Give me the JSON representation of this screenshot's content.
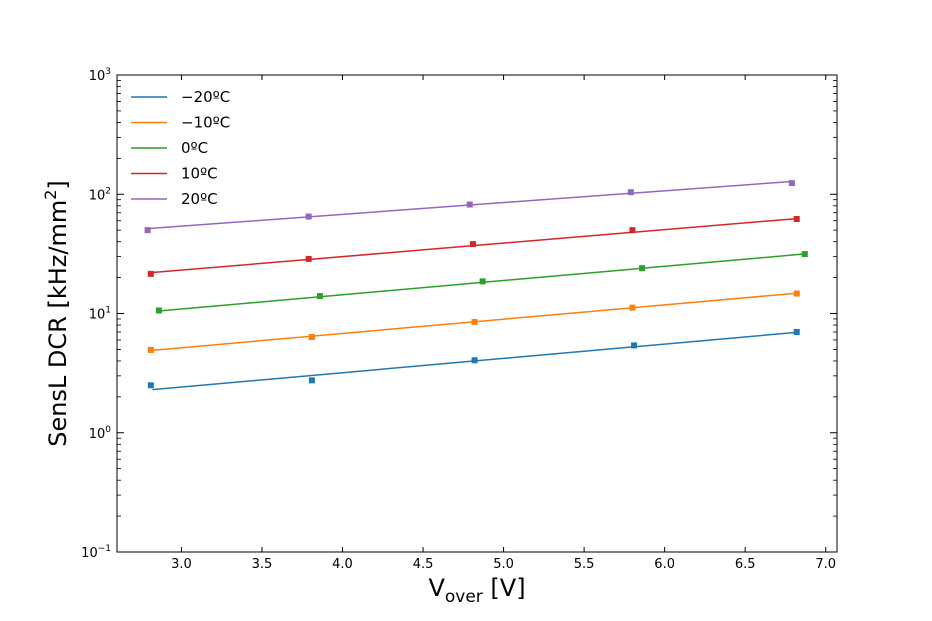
{
  "chart_data": {
    "type": "scatter",
    "title": "",
    "xlabel": {
      "main": "V",
      "sub": "over",
      "unit": "[V]"
    },
    "ylabel": {
      "main": "SensL DCR [kHz/mm",
      "sup": "2",
      "end": "]"
    },
    "xlim": [
      2.6,
      7.07
    ],
    "ylim": [
      0.1,
      1000
    ],
    "yscale": "log",
    "grid": false,
    "legend_position": "top-left",
    "xticks": [
      {
        "value": 3.0,
        "label": "3.0"
      },
      {
        "value": 3.5,
        "label": "3.5"
      },
      {
        "value": 4.0,
        "label": "4.0"
      },
      {
        "value": 4.5,
        "label": "4.5"
      },
      {
        "value": 5.0,
        "label": "5.0"
      },
      {
        "value": 5.5,
        "label": "5.5"
      },
      {
        "value": 6.0,
        "label": "6.0"
      },
      {
        "value": 6.5,
        "label": "6.5"
      },
      {
        "value": 7.0,
        "label": "7.0"
      }
    ],
    "yticks": [
      {
        "value": 0.1,
        "base": "10",
        "exp": "−1"
      },
      {
        "value": 1,
        "base": "10",
        "exp": "0"
      },
      {
        "value": 10,
        "base": "10",
        "exp": "1"
      },
      {
        "value": 100,
        "base": "10",
        "exp": "2"
      },
      {
        "value": 1000,
        "base": "10",
        "exp": "3"
      }
    ],
    "series": [
      {
        "name": "−20ºC",
        "color": "#1f77b4",
        "points": [
          [
            2.81,
            2.5
          ],
          [
            3.81,
            2.75
          ],
          [
            4.82,
            4.05
          ],
          [
            5.81,
            5.4
          ],
          [
            6.82,
            7.0
          ]
        ],
        "fit": [
          [
            2.82,
            2.3
          ],
          [
            6.82,
            6.95
          ]
        ]
      },
      {
        "name": "−10ºC",
        "color": "#ff7f0e",
        "points": [
          [
            2.81,
            4.95
          ],
          [
            3.81,
            6.35
          ],
          [
            4.82,
            8.5
          ],
          [
            5.8,
            11.2
          ],
          [
            6.82,
            14.7
          ]
        ],
        "fit": [
          [
            2.81,
            4.9
          ],
          [
            6.82,
            14.8
          ]
        ]
      },
      {
        "name": "0ºC",
        "color": "#2ca02c",
        "points": [
          [
            2.86,
            10.6
          ],
          [
            3.86,
            14.0
          ],
          [
            4.87,
            18.6
          ],
          [
            5.86,
            24.0
          ],
          [
            6.87,
            31.5
          ]
        ],
        "fit": [
          [
            2.86,
            10.5
          ],
          [
            6.87,
            31.6
          ]
        ]
      },
      {
        "name": "10ºC",
        "color": "#d62728",
        "points": [
          [
            2.81,
            21.5
          ],
          [
            3.79,
            28.7
          ],
          [
            4.81,
            38.2
          ],
          [
            5.8,
            50.0
          ],
          [
            6.82,
            62.0
          ]
        ],
        "fit": [
          [
            2.81,
            22.0
          ],
          [
            6.82,
            62.5
          ]
        ]
      },
      {
        "name": "20ºC",
        "color": "#9467bd",
        "points": [
          [
            2.79,
            50.0
          ],
          [
            3.79,
            65.0
          ],
          [
            4.79,
            82.0
          ],
          [
            5.79,
            104.0
          ],
          [
            6.79,
            124.0
          ]
        ],
        "fit": [
          [
            2.79,
            51.5
          ],
          [
            6.79,
            128.0
          ]
        ]
      }
    ]
  }
}
